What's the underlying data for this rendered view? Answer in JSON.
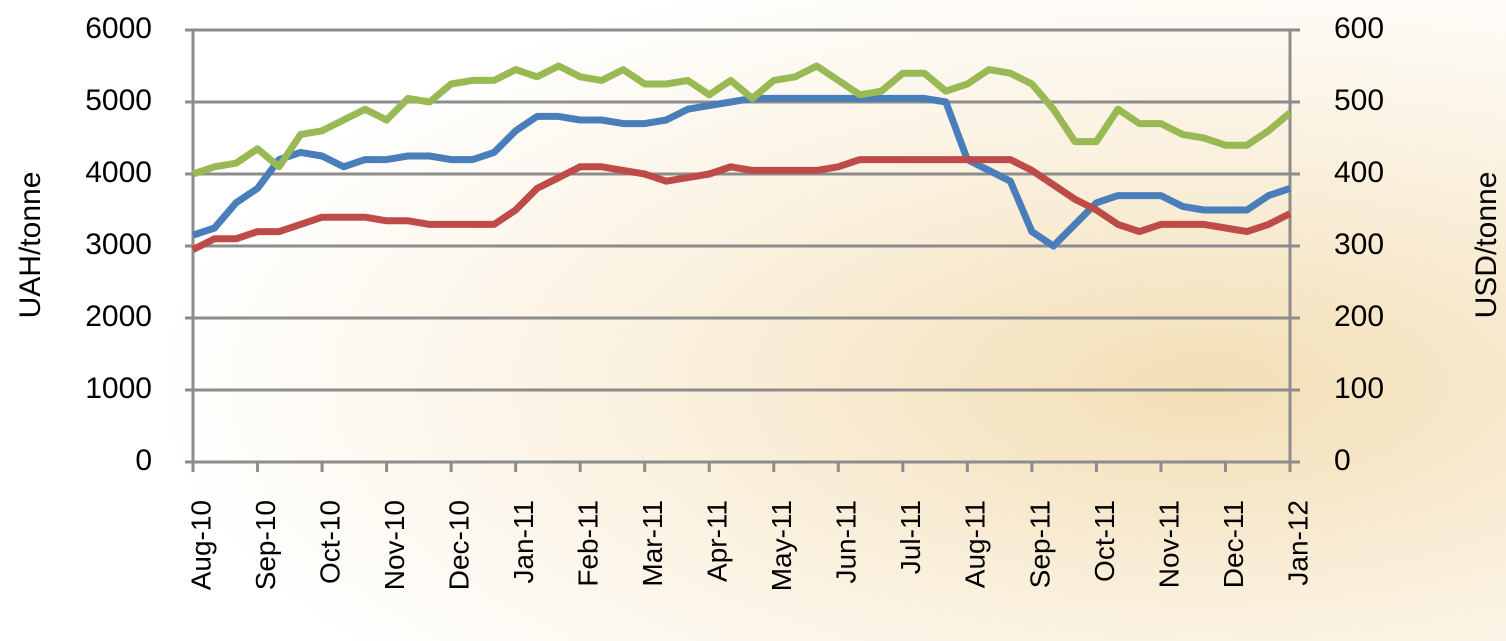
{
  "chart_data": {
    "type": "line",
    "y_label": "UAH/tonne",
    "y2_label": "USD/tonne",
    "categories": [
      "Aug-10",
      null,
      null,
      "Sep-10",
      null,
      null,
      "Oct-10",
      null,
      null,
      "Nov-10",
      null,
      null,
      "Dec-10",
      null,
      null,
      "Jan-11",
      null,
      null,
      "Feb-11",
      null,
      null,
      "Mar-11",
      null,
      null,
      "Apr-11",
      null,
      null,
      "May-11",
      null,
      null,
      "Jun-11",
      null,
      null,
      "Jul-11",
      null,
      null,
      "Aug-11",
      null,
      null,
      "Sep-11",
      null,
      null,
      "Oct-11",
      null,
      null,
      "Nov-11",
      null,
      null,
      "Dec-11",
      null,
      null,
      "Jan-12"
    ],
    "series": [
      {
        "color": "#4a7ebb",
        "values": [
          3150,
          3250,
          3600,
          3800,
          4200,
          4300,
          4250,
          4100,
          4200,
          4200,
          4250,
          4250,
          4200,
          4200,
          4300,
          4600,
          4800,
          4800,
          4750,
          4750,
          4700,
          4700,
          4750,
          4900,
          4950,
          5000,
          5050,
          5050,
          5050,
          5050,
          5050,
          5050,
          5050,
          5050,
          5050,
          5000,
          4200,
          4050,
          3900,
          3200,
          3000,
          3300,
          3600,
          3700,
          3700,
          3700,
          3550,
          3500,
          3500,
          3500,
          3700,
          3800
        ]
      },
      {
        "color": "#be4b48",
        "values": [
          2950,
          3100,
          3100,
          3200,
          3200,
          3300,
          3400,
          3400,
          3400,
          3350,
          3350,
          3300,
          3300,
          3300,
          3300,
          3500,
          3800,
          3950,
          4100,
          4100,
          4050,
          4000,
          3900,
          3950,
          4000,
          4100,
          4050,
          4050,
          4050,
          4050,
          4100,
          4200,
          4200,
          4200,
          4200,
          4200,
          4200,
          4200,
          4200,
          4050,
          3850,
          3650,
          3500,
          3300,
          3200,
          3300,
          3300,
          3300,
          3250,
          3200,
          3300,
          3450
        ]
      },
      {
        "color": "#98b954",
        "axis": "y2",
        "values": [
          400,
          410,
          415,
          435,
          410,
          455,
          460,
          475,
          490,
          475,
          505,
          500,
          525,
          530,
          530,
          545,
          535,
          550,
          535,
          530,
          545,
          525,
          525,
          530,
          510,
          530,
          505,
          530,
          535,
          550,
          530,
          510,
          515,
          540,
          540,
          515,
          525,
          545,
          540,
          525,
          490,
          445,
          445,
          490,
          470,
          470,
          455,
          450,
          440,
          440,
          460,
          485
        ]
      }
    ],
    "ylim": [
      0,
      6000
    ],
    "yticks": [
      0,
      1000,
      2000,
      3000,
      4000,
      5000,
      6000
    ],
    "y2lim": [
      0,
      600
    ],
    "y2ticks": [
      0,
      100,
      200,
      300,
      400,
      500,
      600
    ],
    "grid": true
  }
}
